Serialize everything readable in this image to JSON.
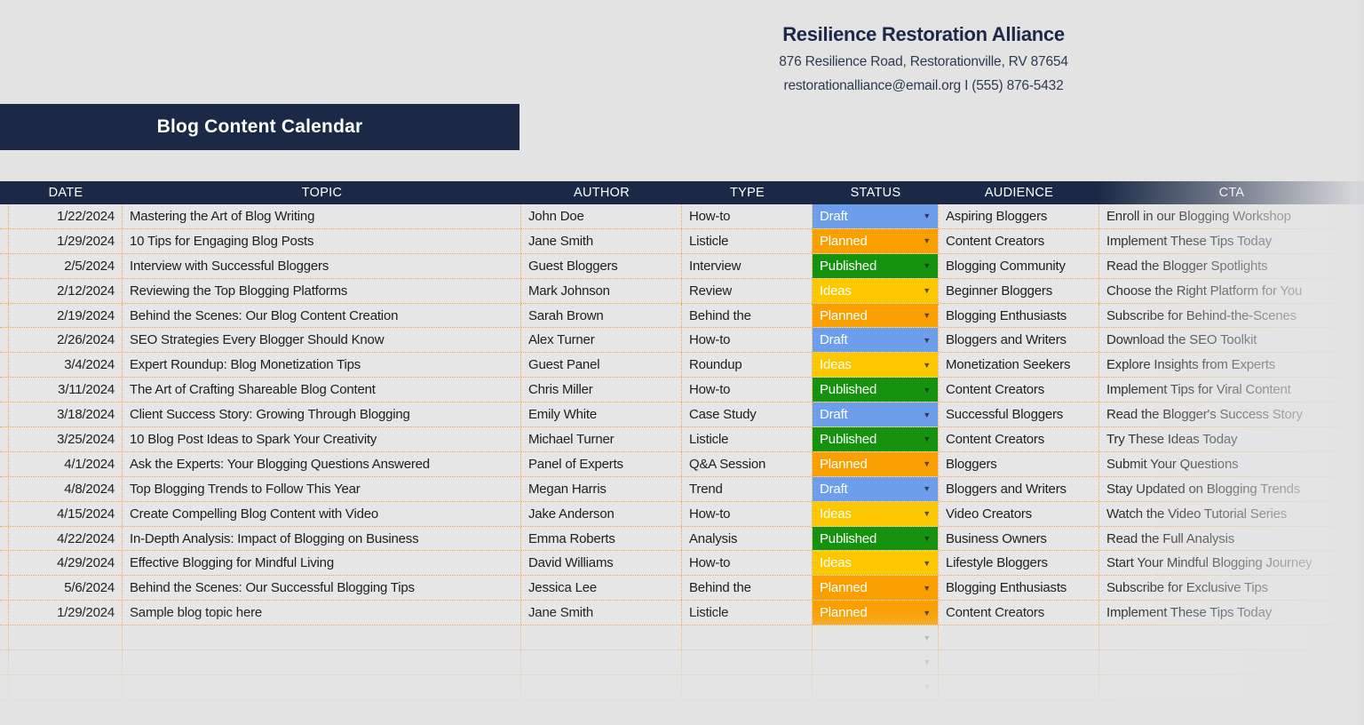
{
  "company": {
    "name": "Resilience Restoration Alliance",
    "address": "876 Resilience Road, Restorationville, RV 87654",
    "contact": "restorationalliance@email.org I (555) 876-5432"
  },
  "title": "Blog Content Calendar",
  "table": {
    "headers": [
      "DATE",
      "TOPIC",
      "AUTHOR",
      "TYPE",
      "STATUS",
      "AUDIENCE",
      "CTA"
    ],
    "status_colors": {
      "Draft": "#6d9eeb",
      "Planned": "#f9a000",
      "Published": "#15930f",
      "Ideas": "#fdc800"
    },
    "dropdown_arrow": "▼",
    "empty_row_count": 3,
    "rows": [
      {
        "date": "1/22/2024",
        "topic": "Mastering the Art of Blog Writing",
        "author": "John Doe",
        "type": "How-to",
        "status": "Draft",
        "audience": "Aspiring Bloggers",
        "cta": "Enroll in our Blogging Workshop"
      },
      {
        "date": "1/29/2024",
        "topic": "10 Tips for Engaging Blog Posts",
        "author": "Jane Smith",
        "type": "Listicle",
        "status": "Planned",
        "audience": "Content Creators",
        "cta": "Implement These Tips Today"
      },
      {
        "date": "2/5/2024",
        "topic": "Interview with Successful Bloggers",
        "author": "Guest Bloggers",
        "type": "Interview",
        "status": "Published",
        "audience": "Blogging Community",
        "cta": "Read the Blogger Spotlights"
      },
      {
        "date": "2/12/2024",
        "topic": "Reviewing the Top Blogging Platforms",
        "author": "Mark Johnson",
        "type": "Review",
        "status": "Ideas",
        "audience": "Beginner Bloggers",
        "cta": "Choose the Right Platform for You"
      },
      {
        "date": "2/19/2024",
        "topic": "Behind the Scenes: Our Blog Content Creation",
        "author": "Sarah Brown",
        "type": "Behind the",
        "status": "Planned",
        "audience": "Blogging Enthusiasts",
        "cta": "Subscribe for Behind-the-Scenes"
      },
      {
        "date": "2/26/2024",
        "topic": "SEO Strategies Every Blogger Should Know",
        "author": "Alex Turner",
        "type": "How-to",
        "status": "Draft",
        "audience": "Bloggers and Writers",
        "cta": "Download the SEO Toolkit"
      },
      {
        "date": "3/4/2024",
        "topic": "Expert Roundup: Blog Monetization Tips",
        "author": "Guest Panel",
        "type": "Roundup",
        "status": "Ideas",
        "audience": "Monetization Seekers",
        "cta": "Explore Insights from Experts"
      },
      {
        "date": "3/11/2024",
        "topic": "The Art of Crafting Shareable Blog Content",
        "author": "Chris Miller",
        "type": "How-to",
        "status": "Published",
        "audience": "Content Creators",
        "cta": "Implement Tips for Viral Content"
      },
      {
        "date": "3/18/2024",
        "topic": "Client Success Story: Growing Through Blogging",
        "author": "Emily White",
        "type": "Case Study",
        "status": "Draft",
        "audience": "Successful Bloggers",
        "cta": "Read the Blogger's Success Story"
      },
      {
        "date": "3/25/2024",
        "topic": "10 Blog Post Ideas to Spark Your Creativity",
        "author": "Michael Turner",
        "type": "Listicle",
        "status": "Published",
        "audience": "Content Creators",
        "cta": "Try These Ideas Today"
      },
      {
        "date": "4/1/2024",
        "topic": "Ask the Experts: Your Blogging Questions Answered",
        "author": "Panel of Experts",
        "type": "Q&A Session",
        "status": "Planned",
        "audience": "Bloggers",
        "cta": "Submit Your Questions"
      },
      {
        "date": "4/8/2024",
        "topic": "Top Blogging Trends to Follow This Year",
        "author": "Megan Harris",
        "type": "Trend",
        "status": "Draft",
        "audience": "Bloggers and Writers",
        "cta": "Stay Updated on Blogging Trends"
      },
      {
        "date": "4/15/2024",
        "topic": "Create Compelling Blog Content with Video",
        "author": "Jake Anderson",
        "type": "How-to",
        "status": "Ideas",
        "audience": "Video Creators",
        "cta": "Watch the Video Tutorial Series"
      },
      {
        "date": "4/22/2024",
        "topic": "In-Depth Analysis: Impact of Blogging on Business",
        "author": "Emma Roberts",
        "type": "Analysis",
        "status": "Published",
        "audience": "Business Owners",
        "cta": "Read the Full Analysis"
      },
      {
        "date": "4/29/2024",
        "topic": "Effective Blogging for Mindful Living",
        "author": "David Williams",
        "type": "How-to",
        "status": "Ideas",
        "audience": "Lifestyle Bloggers",
        "cta": "Start Your Mindful Blogging Journey"
      },
      {
        "date": "5/6/2024",
        "topic": "Behind the Scenes: Our Successful Blogging Tips",
        "author": "Jessica Lee",
        "type": "Behind the",
        "status": "Planned",
        "audience": "Blogging Enthusiasts",
        "cta": "Subscribe for Exclusive Tips"
      },
      {
        "date": "1/29/2024",
        "topic": "Sample blog topic here",
        "author": "Jane Smith",
        "type": "Listicle",
        "status": "Planned",
        "audience": "Content Creators",
        "cta": "Implement These Tips Today"
      }
    ]
  }
}
